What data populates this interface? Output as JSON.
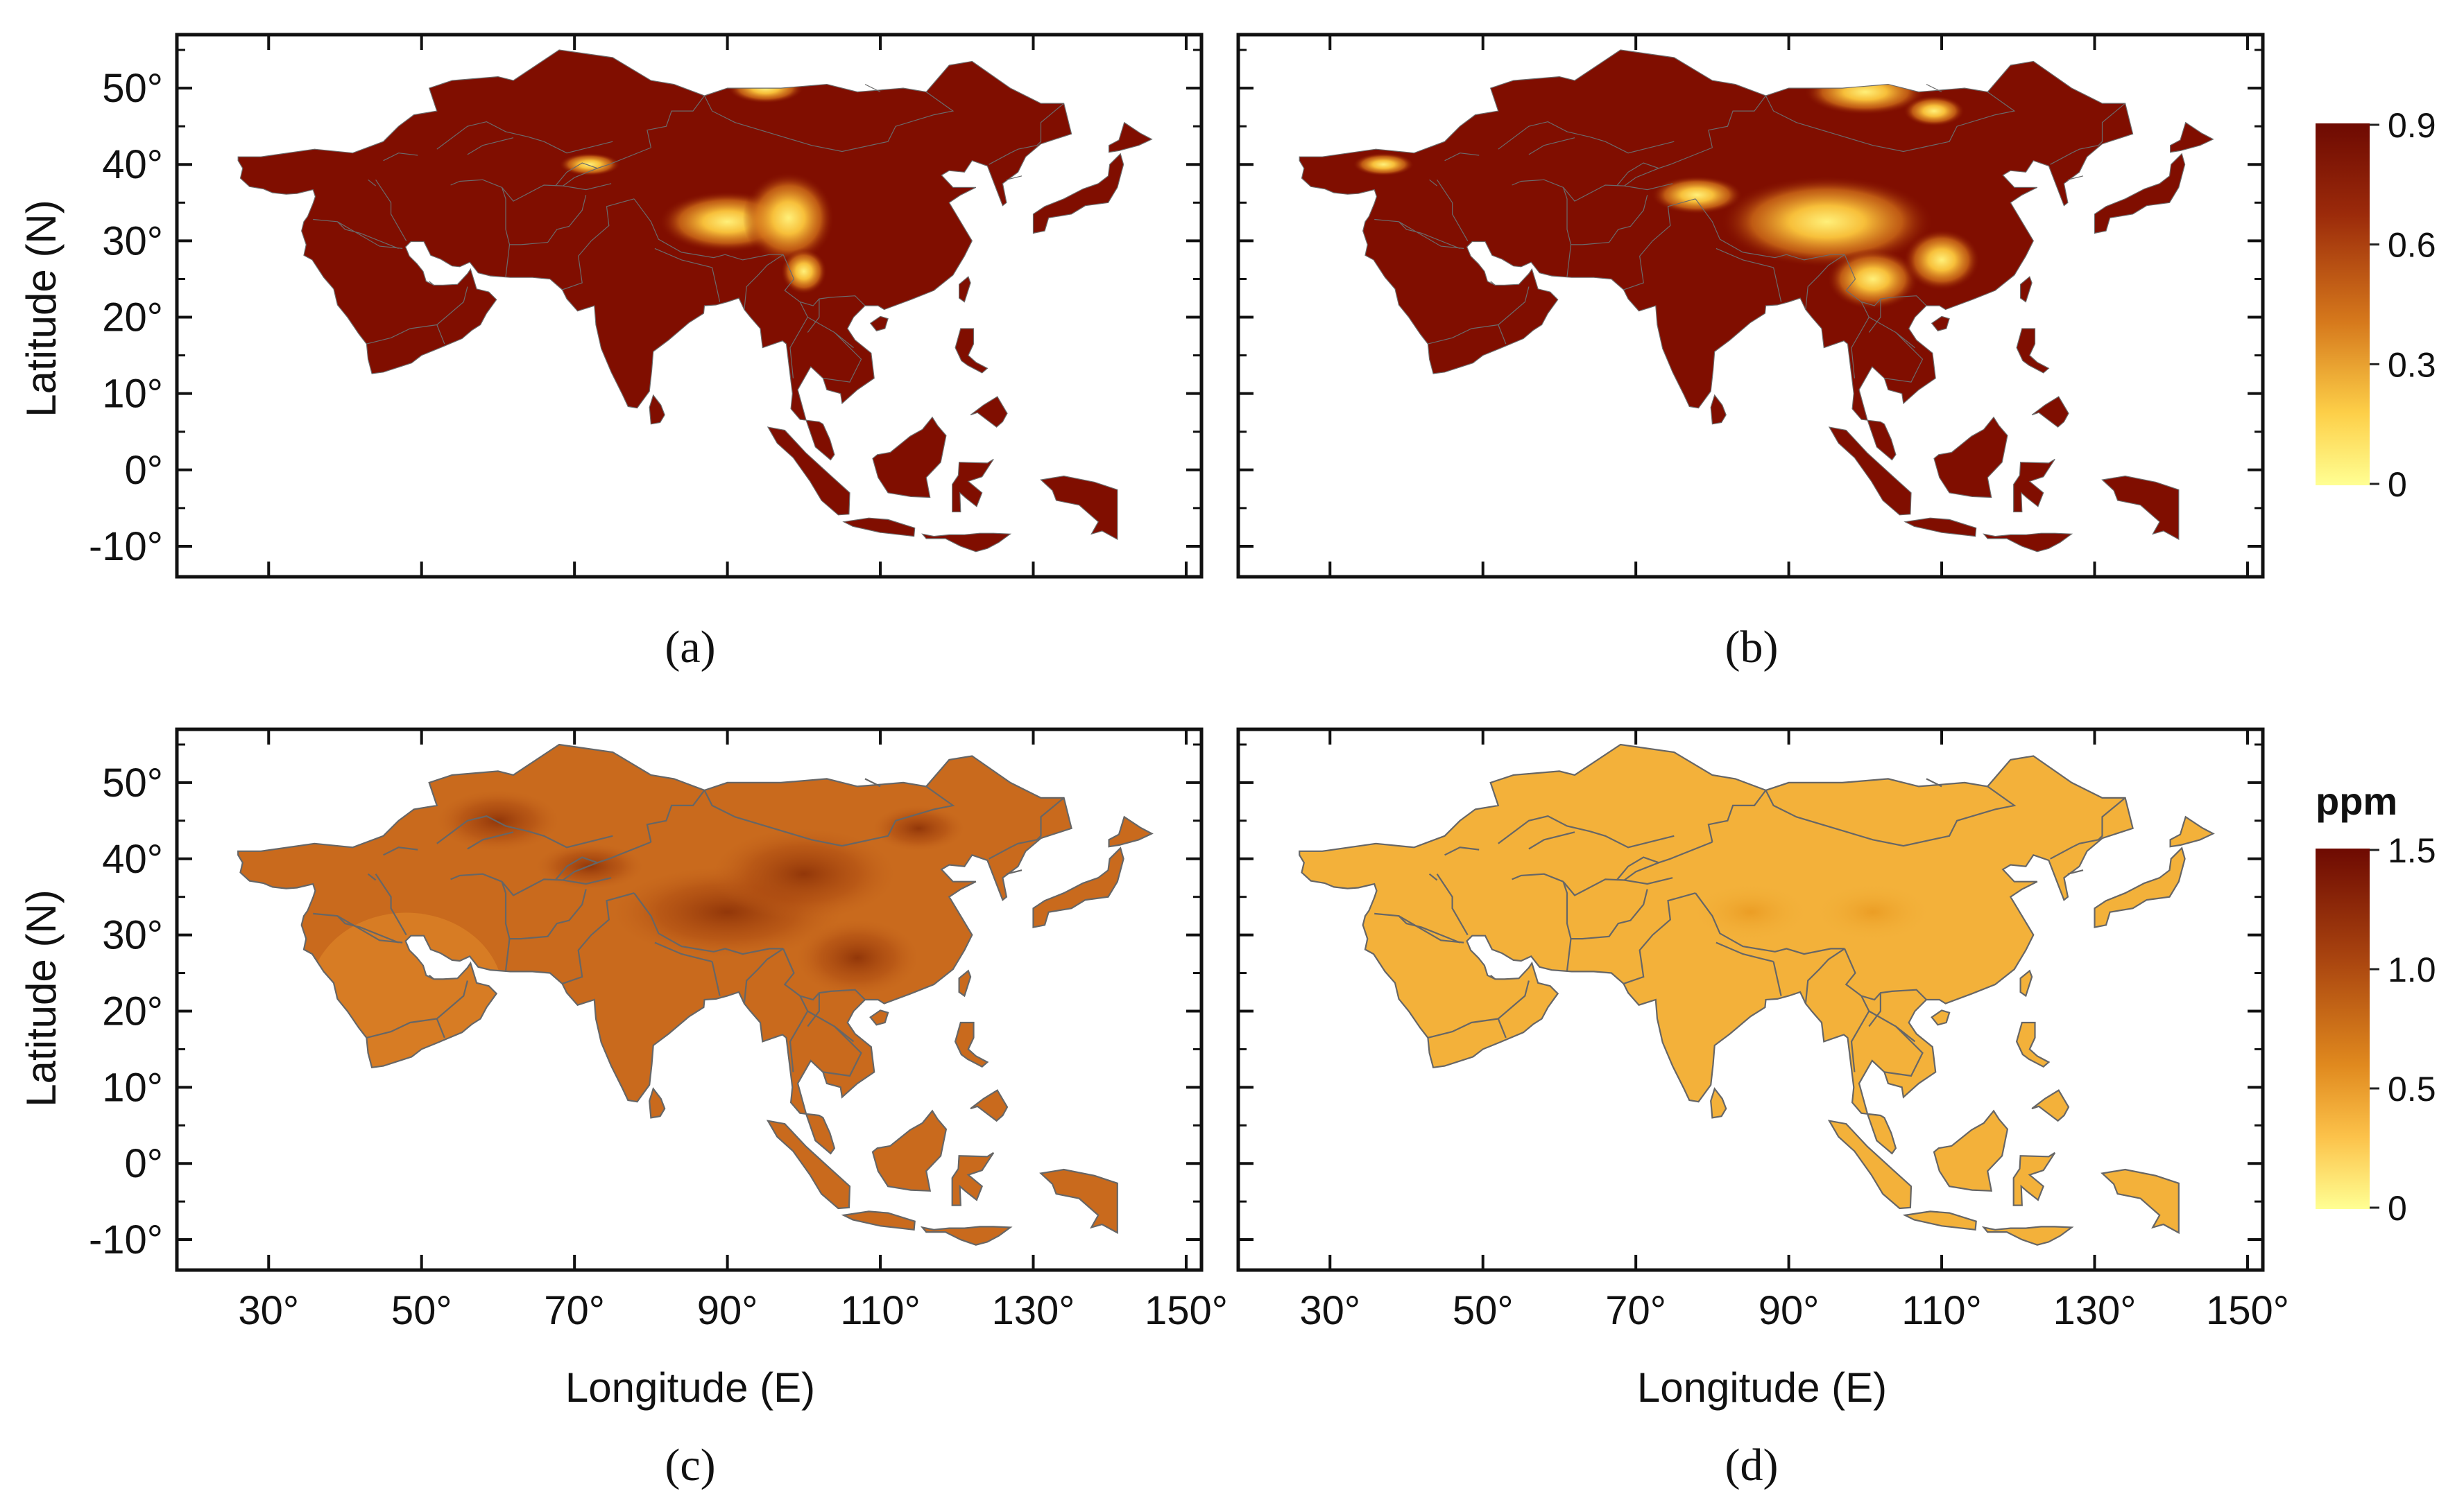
{
  "figure": {
    "panels": [
      {
        "id": "a",
        "caption": "(a)",
        "colormap": "probability",
        "style": "patchy",
        "show_ylabel": true,
        "show_xlabel": false
      },
      {
        "id": "b",
        "caption": "(b)",
        "colormap": "probability",
        "style": "patchy-wide",
        "show_ylabel": false,
        "show_xlabel": false
      },
      {
        "id": "c",
        "caption": "(c)",
        "colormap": "ppm",
        "style": "smooth-dark",
        "show_ylabel": true,
        "show_xlabel": true
      },
      {
        "id": "d",
        "caption": "(d)",
        "colormap": "ppm",
        "style": "smooth-light",
        "show_ylabel": false,
        "show_xlabel": true
      }
    ],
    "axes": {
      "x_label": "Longitude (E)",
      "y_label": "Latitude (N)",
      "x_range": [
        18,
        152
      ],
      "y_range": [
        -14,
        57
      ],
      "x_ticks": [
        {
          "v": 30,
          "label": "30°"
        },
        {
          "v": 50,
          "label": "50°"
        },
        {
          "v": 70,
          "label": "70°"
        },
        {
          "v": 90,
          "label": "90°"
        },
        {
          "v": 110,
          "label": "110°"
        },
        {
          "v": 130,
          "label": "130°"
        },
        {
          "v": 150,
          "label": "150°"
        }
      ],
      "y_ticks": [
        {
          "v": 50,
          "label": "50°"
        },
        {
          "v": 40,
          "label": "40°"
        },
        {
          "v": 30,
          "label": "30°"
        },
        {
          "v": 20,
          "label": "20°"
        },
        {
          "v": 10,
          "label": "10°"
        },
        {
          "v": 0,
          "label": "0°"
        },
        {
          "v": -10,
          "label": "-10°"
        }
      ]
    },
    "colorbars": [
      {
        "id": "probability",
        "unit": "",
        "ticks": [
          "0.9",
          "0.6",
          "0.3",
          "0"
        ],
        "colors": [
          "#6e0a02",
          "#9b2a0a",
          "#d6791c",
          "#fdcf48",
          "#ffff93"
        ]
      },
      {
        "id": "ppm",
        "unit": "ppm",
        "ticks": [
          "1.5",
          "1.0",
          "0.5",
          "0"
        ],
        "colors": [
          "#6e0a02",
          "#a8430f",
          "#e0891e",
          "#fcc24a",
          "#ffff93"
        ]
      }
    ],
    "colors": {
      "background": "#ffffff",
      "land_dark": "#800e00",
      "border": "#5a5a5a",
      "frame": "#111111"
    }
  }
}
